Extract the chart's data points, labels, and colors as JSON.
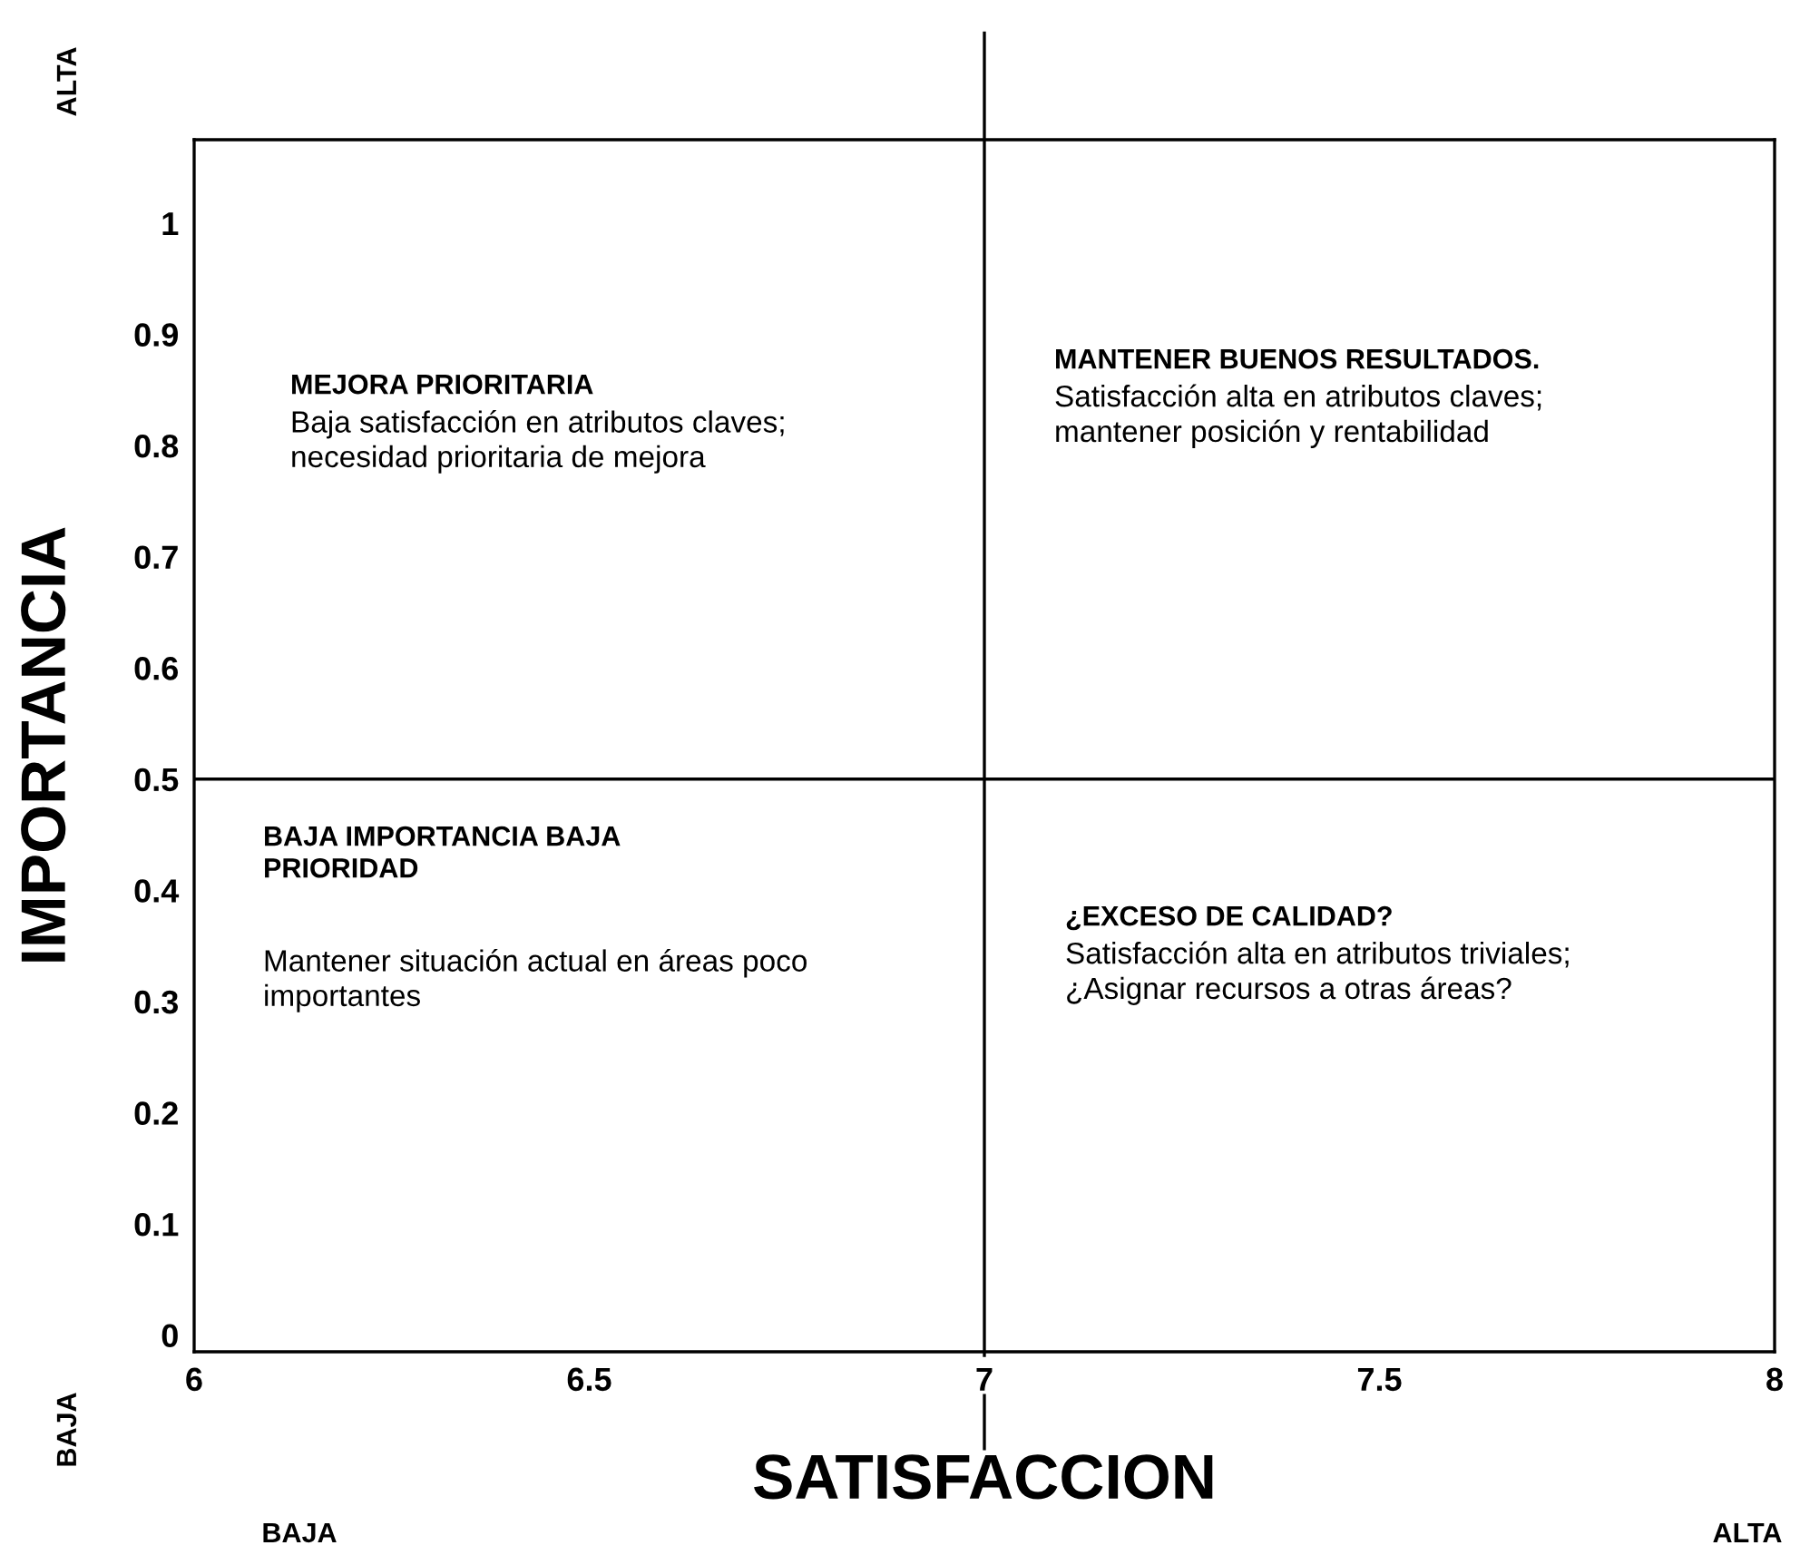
{
  "chart_data": {
    "type": "scatter",
    "xlabel": "SATISFACCION",
    "ylabel": "IMPORTANCIA",
    "xlim": [
      6,
      8
    ],
    "ylim": [
      -0.015,
      1.075
    ],
    "xticks": [
      6,
      6.5,
      7,
      7.5,
      8
    ],
    "yticks": [
      0,
      0.1,
      0.2,
      0.3,
      0.4,
      0.5,
      0.6,
      0.7,
      0.8,
      0.9,
      1
    ],
    "grid": false,
    "ref_lines": [
      {
        "axis": "x",
        "value": 7,
        "color": "#000000"
      },
      {
        "axis": "y",
        "value": 0.5,
        "color": "#000000"
      }
    ],
    "annotations": [
      "MEJORA PRIORITARIA",
      "Baja satisfacción en atributos claves;\nnecesidad prioritaria de mejora",
      "MANTENER BUENOS RESULTADOS.",
      "Satisfacción alta en atributos claves;\nmantener posición y rentabilidad",
      "BAJA IMPORTANCIA BAJA\nPRIORIDAD",
      "Mantener situación actual en áreas poco\nimportantes",
      "¿EXCESO DE CALIDAD?",
      "Satisfacción alta en atributos triviales;\n¿Asignar recursos a otras áreas?",
      "ALTA",
      "BAJA",
      "BAJA",
      "ALTA"
    ]
  }
}
